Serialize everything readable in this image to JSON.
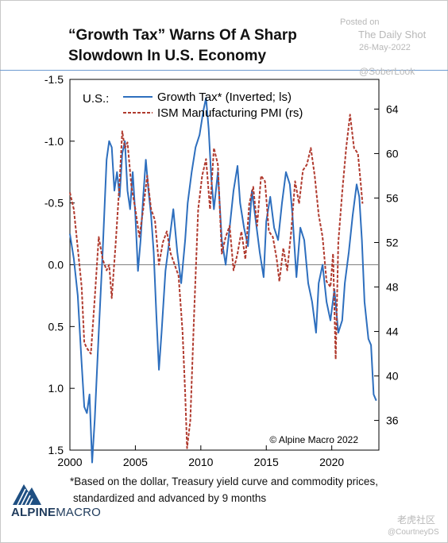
{
  "title": "“Growth Tax” Warns Of A Sharp Slowdown In U.S. Economy",
  "watermark": {
    "posted": "Posted on",
    "source": "The Daily Shot",
    "date": "26-May-2022",
    "handle": "@SoberLook",
    "tiger": "老虎社区",
    "handle2": "@CourtneyDS"
  },
  "footnote_lines": [
    "*Based on the dollar, Treasury yield curve and commodity prices,",
    "standardized and advanced by 9 months"
  ],
  "logo": {
    "bold": "ALPINE",
    "regular": "MACRO",
    "mark": "alpine-macro-logo-icon"
  },
  "colors": {
    "growth_tax": "#2e6fbe",
    "ism": "#b03a2e",
    "zero_line": "#808080"
  },
  "chart_data": {
    "type": "line",
    "region_label": "U.S.:",
    "copyright": "© Alpine Macro 2022",
    "xlim": [
      2000,
      2023.6
    ],
    "x_ticks": [
      2000,
      2005,
      2010,
      2015,
      2020
    ],
    "y_left": {
      "lim": [
        -1.5,
        1.5
      ],
      "inverted": true,
      "ticks": [
        -1.5,
        -1.0,
        -0.5,
        0.0,
        0.5,
        1.0,
        1.5
      ],
      "tick_labels": [
        "-1.5",
        "-1.0",
        "-0.5",
        "0.0",
        "0.5",
        "1.0",
        "1.5"
      ]
    },
    "y_right": {
      "lim": [
        33.33,
        66.67
      ],
      "ticks": [
        36,
        40,
        44,
        48,
        52,
        56,
        60,
        64
      ]
    },
    "series": [
      {
        "name": "Growth Tax* (Inverted; ls)",
        "axis": "left",
        "style": "solid",
        "x": [
          2000.0,
          2000.3,
          2000.6,
          2000.9,
          2001.1,
          2001.3,
          2001.5,
          2001.7,
          2001.9,
          2002.2,
          2002.5,
          2002.8,
          2003.0,
          2003.2,
          2003.4,
          2003.6,
          2003.8,
          2004.0,
          2004.2,
          2004.4,
          2004.6,
          2004.8,
          2005.0,
          2005.2,
          2005.4,
          2005.6,
          2005.8,
          2006.0,
          2006.2,
          2006.4,
          2006.6,
          2006.8,
          2007.0,
          2007.3,
          2007.6,
          2007.9,
          2008.2,
          2008.5,
          2008.8,
          2009.0,
          2009.3,
          2009.6,
          2009.9,
          2010.2,
          2010.4,
          2010.6,
          2010.8,
          2011.0,
          2011.3,
          2011.6,
          2011.9,
          2012.2,
          2012.5,
          2012.8,
          2013.0,
          2013.3,
          2013.6,
          2013.9,
          2014.2,
          2014.5,
          2014.8,
          2015.0,
          2015.3,
          2015.6,
          2015.9,
          2016.2,
          2016.5,
          2016.8,
          2017.0,
          2017.3,
          2017.6,
          2017.9,
          2018.2,
          2018.5,
          2018.8,
          2019.0,
          2019.3,
          2019.6,
          2019.9,
          2020.2,
          2020.5,
          2020.8,
          2021.0,
          2021.3,
          2021.6,
          2021.9,
          2022.1,
          2022.3,
          2022.5,
          2022.8,
          2023.0,
          2023.2,
          2023.4
        ],
        "values": [
          -0.25,
          -0.05,
          0.25,
          0.8,
          1.15,
          1.2,
          1.05,
          1.6,
          1.25,
          0.55,
          -0.1,
          -0.85,
          -1.0,
          -0.95,
          -0.6,
          -0.75,
          -0.55,
          -0.9,
          -1.0,
          -0.6,
          -0.45,
          -0.75,
          -0.4,
          0.05,
          -0.2,
          -0.55,
          -0.85,
          -0.6,
          -0.4,
          -0.1,
          0.4,
          0.85,
          0.55,
          0.05,
          -0.2,
          -0.45,
          -0.1,
          0.15,
          -0.2,
          -0.5,
          -0.75,
          -0.95,
          -1.05,
          -1.25,
          -1.35,
          -1.1,
          -0.7,
          -0.45,
          -0.75,
          -0.2,
          0.0,
          -0.3,
          -0.6,
          -0.8,
          -0.5,
          -0.3,
          -0.15,
          -0.6,
          -0.35,
          -0.1,
          0.1,
          -0.35,
          -0.55,
          -0.3,
          -0.2,
          -0.5,
          -0.75,
          -0.65,
          -0.4,
          0.1,
          -0.3,
          -0.2,
          0.15,
          0.3,
          0.55,
          0.15,
          0.0,
          0.3,
          0.45,
          0.2,
          0.55,
          0.45,
          0.15,
          -0.1,
          -0.4,
          -0.65,
          -0.55,
          -0.2,
          0.3,
          0.6,
          0.65,
          1.05,
          1.1
        ]
      },
      {
        "name": "ISM Manufacturing PMI (rs)",
        "axis": "right",
        "style": "dashed",
        "x": [
          2000.0,
          2000.3,
          2000.6,
          2000.9,
          2001.1,
          2001.3,
          2001.6,
          2001.9,
          2002.2,
          2002.5,
          2002.8,
          2003.0,
          2003.2,
          2003.5,
          2003.8,
          2004.0,
          2004.2,
          2004.4,
          2004.7,
          2005.0,
          2005.3,
          2005.6,
          2005.9,
          2006.2,
          2006.5,
          2006.8,
          2007.1,
          2007.4,
          2007.7,
          2008.0,
          2008.3,
          2008.6,
          2008.8,
          2008.95,
          2009.2,
          2009.5,
          2009.8,
          2010.1,
          2010.4,
          2010.7,
          2011.0,
          2011.3,
          2011.6,
          2011.9,
          2012.2,
          2012.5,
          2012.8,
          2013.1,
          2013.4,
          2013.7,
          2014.0,
          2014.3,
          2014.6,
          2014.9,
          2015.2,
          2015.5,
          2015.8,
          2016.0,
          2016.3,
          2016.6,
          2016.9,
          2017.2,
          2017.5,
          2017.8,
          2018.1,
          2018.4,
          2018.7,
          2019.0,
          2019.3,
          2019.6,
          2019.9,
          2020.1,
          2020.3,
          2020.5,
          2020.8,
          2021.1,
          2021.4,
          2021.7,
          2022.0,
          2022.2,
          2022.35
        ],
        "values": [
          56.5,
          55.0,
          51.5,
          48.0,
          43.0,
          42.5,
          42.0,
          47.0,
          52.5,
          50.5,
          49.5,
          50.0,
          47.0,
          52.0,
          57.5,
          62.0,
          60.5,
          61.0,
          57.0,
          55.0,
          52.5,
          55.0,
          58.0,
          55.0,
          54.0,
          50.0,
          52.0,
          53.0,
          51.0,
          50.0,
          49.0,
          44.0,
          38.5,
          33.5,
          36.0,
          46.0,
          55.0,
          58.0,
          59.5,
          55.0,
          60.5,
          59.0,
          51.0,
          52.5,
          53.5,
          49.5,
          51.0,
          53.0,
          50.5,
          55.5,
          57.0,
          53.5,
          58.0,
          57.5,
          53.0,
          52.5,
          50.5,
          48.5,
          51.5,
          49.5,
          53.0,
          57.5,
          55.5,
          58.5,
          59.0,
          60.5,
          58.0,
          54.5,
          52.5,
          48.5,
          48.0,
          51.0,
          41.5,
          52.0,
          56.5,
          60.5,
          63.5,
          60.5,
          60.0,
          57.5,
          55.5
        ]
      }
    ]
  }
}
